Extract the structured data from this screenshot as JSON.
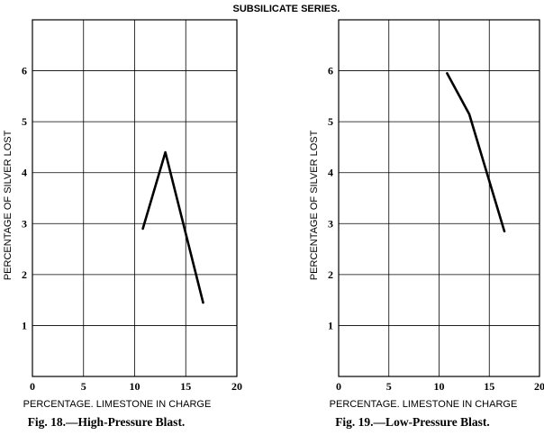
{
  "title": "SUBSILICATE SERIES.",
  "chart_data": [
    {
      "type": "line",
      "caption": "Fig. 18.—High-Pressure Blast.",
      "xlabel": "PERCENTAGE. LIMESTONE IN CHARGE",
      "ylabel": "PERCENTAGE OF SILVER LOST",
      "xlim": [
        0,
        20
      ],
      "ylim": [
        0,
        7
      ],
      "xticks": [
        0,
        5,
        10,
        15,
        20
      ],
      "yticks": [
        1,
        2,
        3,
        4,
        5,
        6
      ],
      "grid": true,
      "x": [
        10.8,
        13.0,
        16.7
      ],
      "y": [
        2.9,
        4.4,
        1.45
      ]
    },
    {
      "type": "line",
      "caption": "Fig. 19.—Low-Pressure Blast.",
      "xlabel": "PERCENTAGE. LIMESTONE IN CHARGE",
      "ylabel": "PERCENTAGE OF SILVER LOST",
      "xlim": [
        0,
        20
      ],
      "ylim": [
        0,
        7
      ],
      "xticks": [
        0,
        5,
        10,
        15,
        20
      ],
      "yticks": [
        1,
        2,
        3,
        4,
        5,
        6
      ],
      "grid": true,
      "x": [
        10.8,
        13.0,
        16.5
      ],
      "y": [
        5.95,
        5.15,
        2.85
      ]
    }
  ]
}
